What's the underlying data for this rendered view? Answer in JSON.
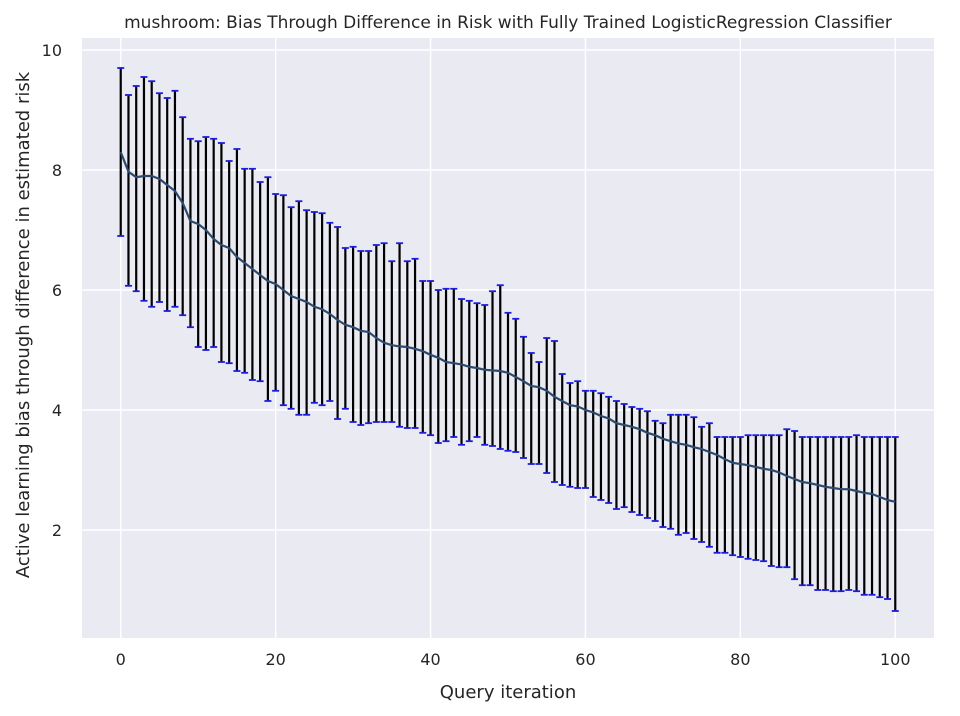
{
  "chart_data": {
    "type": "line",
    "title": "mushroom: Bias Through Difference in Risk with Fully Trained LogisticRegression Classifier",
    "xlabel": "Query iteration",
    "ylabel": "Active learning bias through difference in estimated risk",
    "xlim": [
      -5,
      105
    ],
    "ylim": [
      0.2,
      10.2
    ],
    "xticks": [
      0,
      20,
      40,
      60,
      80,
      100
    ],
    "yticks": [
      2,
      4,
      6,
      8,
      10
    ],
    "grid": true,
    "colors": {
      "background": "#eaeaf2",
      "grid": "#ffffff",
      "line": "#2c4a6e",
      "errorbar": "#000000",
      "cap": "#1c1ce0"
    },
    "series": [
      {
        "x": [
          0,
          1,
          2,
          3,
          4,
          5,
          6,
          7,
          8,
          9,
          10,
          11,
          12,
          13,
          14,
          15,
          16,
          17,
          18,
          19,
          20,
          21,
          22,
          23,
          24,
          25,
          26,
          27,
          28,
          29,
          30,
          31,
          32,
          33,
          34,
          35,
          36,
          37,
          38,
          39,
          40,
          41,
          42,
          43,
          44,
          45,
          46,
          47,
          48,
          49,
          50,
          51,
          52,
          53,
          54,
          55,
          56,
          57,
          58,
          59,
          60,
          61,
          62,
          63,
          64,
          65,
          66,
          67,
          68,
          69,
          70,
          71,
          72,
          73,
          74,
          75,
          76,
          77,
          78,
          79,
          80,
          81,
          82,
          83,
          84,
          85,
          86,
          87,
          88,
          89,
          90,
          91,
          92,
          93,
          94,
          95,
          96,
          97,
          98,
          99,
          100
        ],
        "y": [
          8.3,
          7.97,
          7.88,
          7.9,
          7.9,
          7.85,
          7.75,
          7.65,
          7.45,
          7.15,
          7.1,
          7.0,
          6.85,
          6.75,
          6.7,
          6.55,
          6.45,
          6.35,
          6.25,
          6.15,
          6.1,
          6.0,
          5.9,
          5.85,
          5.8,
          5.72,
          5.68,
          5.6,
          5.5,
          5.42,
          5.38,
          5.32,
          5.3,
          5.2,
          5.12,
          5.08,
          5.06,
          5.05,
          5.02,
          4.98,
          4.92,
          4.87,
          4.8,
          4.78,
          4.76,
          4.72,
          4.7,
          4.67,
          4.66,
          4.65,
          4.62,
          4.55,
          4.48,
          4.4,
          4.38,
          4.32,
          4.22,
          4.15,
          4.08,
          4.06,
          4.0,
          3.96,
          3.9,
          3.86,
          3.78,
          3.75,
          3.72,
          3.68,
          3.62,
          3.58,
          3.52,
          3.48,
          3.44,
          3.42,
          3.38,
          3.35,
          3.3,
          3.25,
          3.18,
          3.12,
          3.1,
          3.08,
          3.05,
          3.02,
          3.0,
          2.96,
          2.9,
          2.85,
          2.8,
          2.78,
          2.75,
          2.72,
          2.7,
          2.68,
          2.68,
          2.65,
          2.62,
          2.6,
          2.55,
          2.5,
          2.47
        ],
        "upper": [
          9.7,
          9.25,
          9.4,
          9.55,
          9.48,
          9.28,
          9.2,
          9.32,
          8.88,
          8.52,
          8.48,
          8.55,
          8.52,
          8.45,
          8.15,
          8.35,
          8.02,
          8.02,
          7.8,
          7.88,
          7.6,
          7.58,
          7.38,
          7.48,
          7.33,
          7.3,
          7.28,
          7.12,
          7.05,
          6.7,
          6.72,
          6.65,
          6.65,
          6.75,
          6.78,
          6.48,
          6.78,
          6.48,
          6.52,
          6.15,
          6.15,
          6.0,
          6.02,
          6.02,
          5.85,
          5.82,
          5.78,
          5.75,
          5.98,
          6.08,
          5.62,
          5.52,
          5.22,
          4.95,
          4.8,
          5.2,
          5.15,
          4.6,
          4.45,
          4.48,
          4.32,
          4.32,
          4.28,
          4.22,
          4.15,
          4.1,
          4.05,
          4.02,
          3.98,
          3.82,
          3.78,
          3.92,
          3.92,
          3.92,
          3.88,
          3.72,
          3.78,
          3.55,
          3.55,
          3.55,
          3.55,
          3.58,
          3.58,
          3.58,
          3.58,
          3.58,
          3.68,
          3.65,
          3.55,
          3.55,
          3.55,
          3.55,
          3.55,
          3.55,
          3.55,
          3.58,
          3.55,
          3.55,
          3.55,
          3.55,
          3.55
        ],
        "lower": [
          6.9,
          6.07,
          5.98,
          5.82,
          5.72,
          5.8,
          5.65,
          5.72,
          5.58,
          5.38,
          5.05,
          5.0,
          5.05,
          4.8,
          4.78,
          4.65,
          4.62,
          4.5,
          4.48,
          4.15,
          4.32,
          4.08,
          4.02,
          3.92,
          3.92,
          4.12,
          4.08,
          4.15,
          3.85,
          4.02,
          3.8,
          3.75,
          3.78,
          3.8,
          3.8,
          3.8,
          3.72,
          3.7,
          3.7,
          3.62,
          3.58,
          3.45,
          3.48,
          3.55,
          3.42,
          3.48,
          3.55,
          3.42,
          3.4,
          3.35,
          3.32,
          3.3,
          3.2,
          3.1,
          3.1,
          2.95,
          2.8,
          2.75,
          2.72,
          2.7,
          2.7,
          2.55,
          2.5,
          2.45,
          2.35,
          2.38,
          2.3,
          2.25,
          2.2,
          2.15,
          2.05,
          2.02,
          1.92,
          1.95,
          1.85,
          1.8,
          1.72,
          1.62,
          1.62,
          1.58,
          1.55,
          1.52,
          1.5,
          1.48,
          1.4,
          1.38,
          1.38,
          1.18,
          1.08,
          1.08,
          1.0,
          1.0,
          0.98,
          0.98,
          1.0,
          0.98,
          0.92,
          0.92,
          0.88,
          0.85,
          0.65
        ]
      }
    ]
  }
}
